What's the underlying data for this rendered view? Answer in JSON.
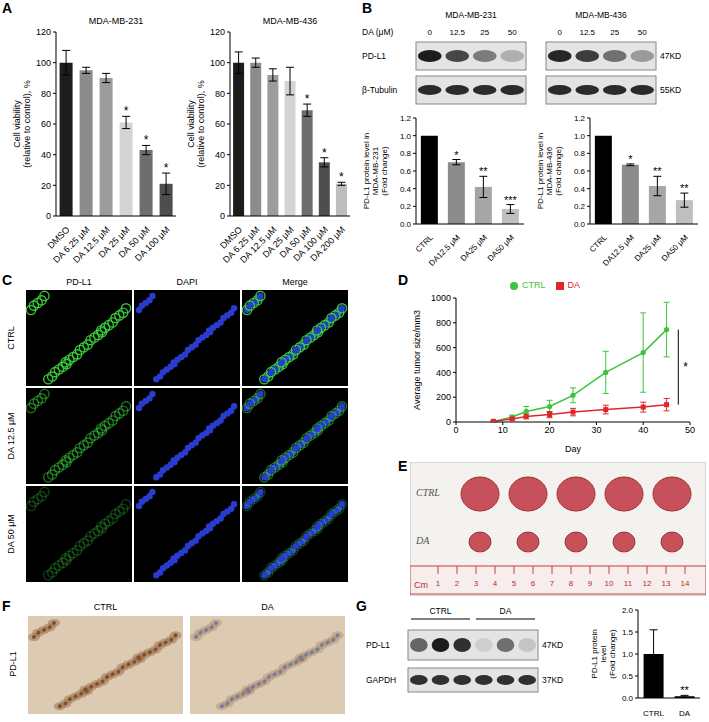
{
  "panel_letters": [
    "A",
    "B",
    "C",
    "D",
    "E",
    "F",
    "G"
  ],
  "chart_data": [
    {
      "type": "bar",
      "title": "MDA-MB-231",
      "y_label": "Cell viability (relative to control), %",
      "categories": [
        "DMSO",
        "DA 6.25 μM",
        "DA 12.5 μM",
        "DA 25 μM",
        "DA 50 μM",
        "DA 100 μM"
      ],
      "values": [
        100,
        95,
        90,
        61,
        43,
        21
      ],
      "errors": [
        8,
        2,
        3,
        4,
        3,
        7
      ],
      "colors": [
        "#1c1c1c",
        "#8c8c8c",
        "#9c9c9c",
        "#d4d4d4",
        "#6e6e6e",
        "#4e4e4e"
      ],
      "significance": [
        null,
        null,
        null,
        "*",
        "*",
        "*"
      ],
      "ylim": [
        0,
        120
      ],
      "yticks": [
        0,
        20,
        40,
        60,
        80,
        100,
        120
      ]
    },
    {
      "type": "bar",
      "title": "MDA-MB-436",
      "y_label": "Cell viability (relative to control), %",
      "categories": [
        "DMSO",
        "DA 6.25 μM",
        "DA 12.5 μM",
        "DA 25 μM",
        "DA 50 μM",
        "DA 100 μM",
        "DA 200 μM"
      ],
      "values": [
        100,
        100,
        92,
        88,
        69,
        35,
        21
      ],
      "errors": [
        7,
        3,
        4,
        9,
        4,
        3,
        1
      ],
      "colors": [
        "#1c1c1c",
        "#8c8c8c",
        "#9c9c9c",
        "#d4d4d4",
        "#6e6e6e",
        "#4e4e4e",
        "#bdbdbd"
      ],
      "significance": [
        null,
        null,
        null,
        null,
        "*",
        "*",
        "*"
      ],
      "ylim": [
        0,
        120
      ],
      "yticks": [
        0,
        20,
        40,
        60,
        80,
        100,
        120
      ]
    },
    {
      "type": "bar",
      "y_label": "PD-L1 protein level in MDA-MB-231 (Fold change)",
      "categories": [
        "CTRL",
        "DA12.5 μM",
        "DA25 μM",
        "DA50 μM"
      ],
      "values": [
        1,
        0.7,
        0.42,
        0.17
      ],
      "errors": [
        0,
        0.03,
        0.12,
        0.05
      ],
      "colors": [
        "#000000",
        "#8c8c8c",
        "#a6a6a6",
        "#bfbfbf"
      ],
      "significance": [
        null,
        "*",
        "**",
        "***"
      ],
      "ylim": [
        0,
        1.2
      ],
      "yticks": [
        {
          "value": 0,
          "label": "0.0"
        },
        0.2,
        0.4,
        0.6,
        0.8,
        {
          "value": 1,
          "label": "1.0"
        },
        1.2
      ]
    },
    {
      "type": "bar",
      "y_label": "PD-L1 protein level in MDA-MB-436 (Fold change)",
      "categories": [
        "CTRL",
        "DA12.5 μM",
        "DA25 μM",
        "DA50 μM"
      ],
      "values": [
        1,
        0.67,
        0.43,
        0.27
      ],
      "errors": [
        0,
        0.01,
        0.11,
        0.08
      ],
      "colors": [
        "#000000",
        "#8c8c8c",
        "#a6a6a6",
        "#bfbfbf"
      ],
      "significance": [
        null,
        "*",
        "**",
        "**"
      ],
      "ylim": [
        0,
        1.2
      ],
      "yticks": [
        {
          "value": 0,
          "label": "0.0"
        },
        0.2,
        0.4,
        0.6,
        0.8,
        {
          "value": 1,
          "label": "1.0"
        },
        1.2
      ]
    },
    {
      "type": "line",
      "x_label": "Day",
      "y_label": "Average tumor size/mm3",
      "x": [
        8,
        12,
        15,
        20,
        25,
        32,
        40,
        45
      ],
      "series": [
        {
          "name": "CTRL",
          "color": "#3cc43c",
          "marker": "circle",
          "values": [
            5,
            40,
            85,
            125,
            215,
            400,
            560,
            745
          ],
          "errors": [
            3,
            15,
            40,
            50,
            60,
            170,
            320,
            220
          ]
        },
        {
          "name": "DA",
          "color": "#e0262b",
          "marker": "square",
          "values": [
            5,
            25,
            45,
            60,
            80,
            100,
            120,
            140
          ],
          "errors": [
            3,
            10,
            20,
            25,
            30,
            35,
            40,
            50
          ]
        }
      ],
      "xlim": [
        0,
        50
      ],
      "xticks": [
        0,
        10,
        20,
        30,
        40,
        50
      ],
      "ylim": [
        0,
        1000
      ],
      "yticks": [
        0,
        200,
        400,
        600,
        800,
        1000
      ],
      "legend": "top",
      "significance": "*"
    },
    {
      "type": "bar",
      "y_label": "PD-L1 protein level (Fold change)",
      "categories": [
        "CTRL",
        "DA"
      ],
      "values": [
        1,
        0.04
      ],
      "errors": [
        0.55,
        0.02
      ],
      "colors": [
        "#000000",
        "#000000"
      ],
      "significance": [
        null,
        "**"
      ],
      "ylim": [
        0,
        2
      ],
      "yticks": [
        {
          "value": 0,
          "label": "0.0"
        },
        0.5,
        {
          "value": 1,
          "label": "1.0"
        },
        1.5,
        {
          "value": 2,
          "label": "2.0"
        }
      ]
    }
  ],
  "blot_B": {
    "header": "DA (μM)",
    "blocks": [
      "MDA-MB-231",
      "MDA-MB-436"
    ],
    "lanes": [
      "0",
      "12.5",
      "25",
      "50"
    ],
    "rows": [
      {
        "label": "PD-L1",
        "size": "47KD"
      },
      {
        "label": "β-Tubulin",
        "size": "55KD"
      }
    ]
  },
  "images_C": {
    "columns": [
      "PD-L1",
      "DAPI",
      "Merge"
    ],
    "rows": [
      "CTRL",
      "DA 12.5 μM",
      "DA 50 μM"
    ]
  },
  "photo_E": {
    "rows": [
      "CTRL",
      "DA"
    ],
    "unit": "Cm",
    "ruler": [
      "1",
      "2",
      "3",
      "4",
      "5",
      "6",
      "7",
      "8",
      "9",
      "10",
      "11",
      "12",
      "13",
      "14"
    ]
  },
  "ihc_F": {
    "label": "PD-L1",
    "columns": [
      "CTRL",
      "DA"
    ]
  },
  "blot_G": {
    "groups": [
      "CTRL",
      "DA"
    ],
    "rows": [
      {
        "label": "PD-L1",
        "size": "47KD"
      },
      {
        "label": "GAPDH",
        "size": "37KD"
      }
    ]
  }
}
